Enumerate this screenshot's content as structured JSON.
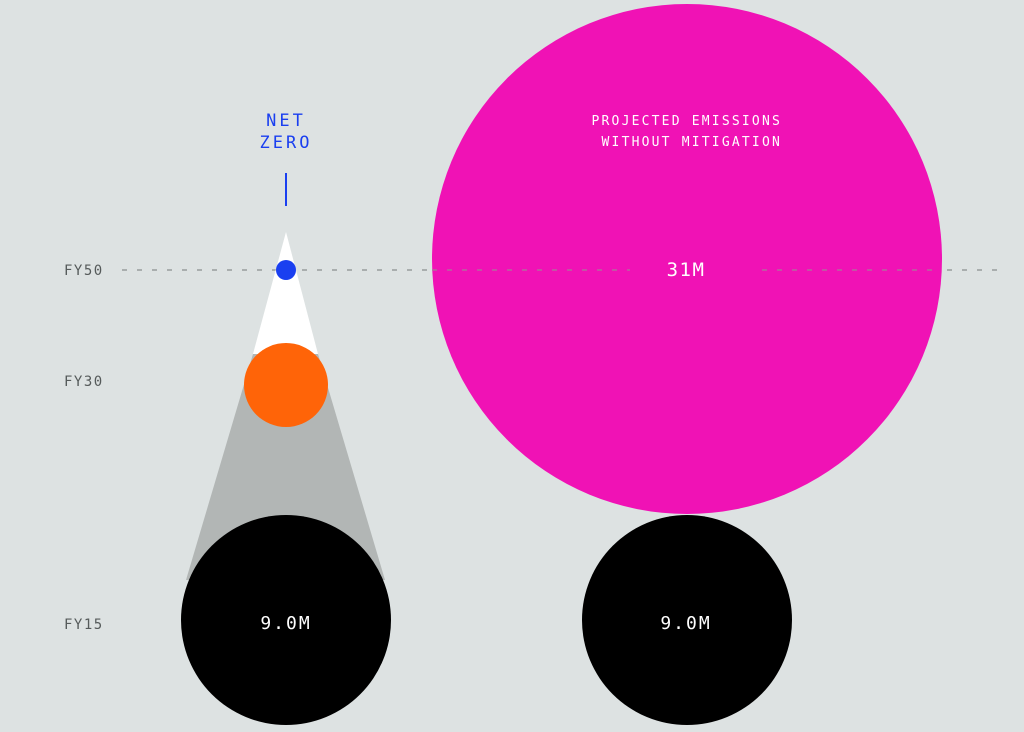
{
  "labels": {
    "fy50": "FY50",
    "fy30": "FY30",
    "fy15": "FY15",
    "net_zero_line1": "NET",
    "net_zero_line2": "ZERO",
    "projected_line1": "PROJECTED EMISSIONS",
    "projected_line2": "WITHOUT MITIGATION",
    "left_base_value": "9.0M",
    "right_base_value": "9.0M",
    "projected_value": "31M"
  },
  "colors": {
    "background": "#dde2e2",
    "year_label": "#555a5a",
    "dashed_line": "#8a8f8f",
    "net_zero": "#1a3ff0",
    "fy30_circle": "#ff6408",
    "base_circle": "#000000",
    "projected_circle": "#f012b5",
    "cone_upper": "#ffffff",
    "cone_lower": "#b2b6b5",
    "value_text": "#ffffff"
  }
}
